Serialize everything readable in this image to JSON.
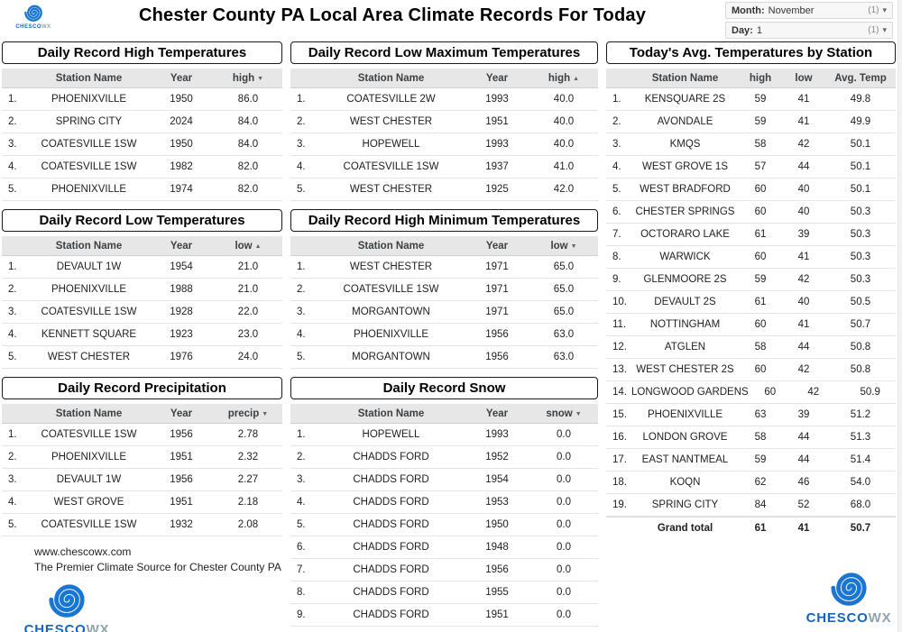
{
  "header": {
    "title": "Chester County PA Local Area Climate Records For Today",
    "filters": [
      {
        "label": "Month:",
        "value": "November",
        "count": "(1)"
      },
      {
        "label": "Day:",
        "value": "1",
        "count": "(1)"
      }
    ]
  },
  "branding": {
    "logo_primary": "CHESCO",
    "logo_secondary": "WX",
    "website": "www.chescowx.com",
    "tagline": "The Premier Climate Source for Chester County PA",
    "accent_color": "#1565c0"
  },
  "tables": {
    "record_high": {
      "title": "Daily Record High Temperatures",
      "columns": [
        {
          "label": "Station Name"
        },
        {
          "label": "Year"
        },
        {
          "label": "high",
          "sort": "desc"
        }
      ],
      "rows": [
        [
          "PHOENIXVILLE",
          "1950",
          "86.0"
        ],
        [
          "SPRING CITY",
          "2024",
          "84.0"
        ],
        [
          "COATESVILLE 1SW",
          "1950",
          "84.0"
        ],
        [
          "COATESVILLE 1SW",
          "1982",
          "82.0"
        ],
        [
          "PHOENIXVILLE",
          "1974",
          "82.0"
        ]
      ]
    },
    "record_low": {
      "title": "Daily Record Low Temperatures",
      "columns": [
        {
          "label": "Station Name"
        },
        {
          "label": "Year"
        },
        {
          "label": "low",
          "sort": "asc"
        }
      ],
      "rows": [
        [
          "DEVAULT 1W",
          "1954",
          "21.0"
        ],
        [
          "PHOENIXVILLE",
          "1988",
          "21.0"
        ],
        [
          "COATESVILLE 1SW",
          "1928",
          "22.0"
        ],
        [
          "KENNETT SQUARE",
          "1923",
          "23.0"
        ],
        [
          "WEST CHESTER",
          "1976",
          "24.0"
        ]
      ]
    },
    "precip": {
      "title": "Daily Record Precipitation",
      "columns": [
        {
          "label": "Station Name"
        },
        {
          "label": "Year"
        },
        {
          "label": "precip",
          "sort": "desc"
        }
      ],
      "rows": [
        [
          "COATESVILLE 1SW",
          "1956",
          "2.78"
        ],
        [
          "PHOENIXVILLE",
          "1951",
          "2.32"
        ],
        [
          "DEVAULT 1W",
          "1956",
          "2.27"
        ],
        [
          "WEST GROVE",
          "1951",
          "2.18"
        ],
        [
          "COATESVILLE 1SW",
          "1932",
          "2.08"
        ]
      ]
    },
    "low_max": {
      "title": "Daily Record Low Maximum Temperatures",
      "columns": [
        {
          "label": "Station Name"
        },
        {
          "label": "Year"
        },
        {
          "label": "high",
          "sort": "asc"
        }
      ],
      "rows": [
        [
          "COATESVILLE 2W",
          "1993",
          "40.0"
        ],
        [
          "WEST CHESTER",
          "1951",
          "40.0"
        ],
        [
          "HOPEWELL",
          "1993",
          "40.0"
        ],
        [
          "COATESVILLE 1SW",
          "1937",
          "41.0"
        ],
        [
          "WEST CHESTER",
          "1925",
          "42.0"
        ]
      ]
    },
    "high_min": {
      "title": "Daily Record High Minimum Temperatures",
      "columns": [
        {
          "label": "Station Name"
        },
        {
          "label": "Year"
        },
        {
          "label": "low",
          "sort": "desc"
        }
      ],
      "rows": [
        [
          "WEST CHESTER",
          "1971",
          "65.0"
        ],
        [
          "COATESVILLE 1SW",
          "1971",
          "65.0"
        ],
        [
          "MORGANTOWN",
          "1971",
          "65.0"
        ],
        [
          "PHOENIXVILLE",
          "1956",
          "63.0"
        ],
        [
          "MORGANTOWN",
          "1956",
          "63.0"
        ]
      ]
    },
    "snow": {
      "title": "Daily Record Snow",
      "columns": [
        {
          "label": "Station Name"
        },
        {
          "label": "Year"
        },
        {
          "label": "snow",
          "sort": "desc"
        }
      ],
      "rows": [
        [
          "HOPEWELL",
          "1993",
          "0.0"
        ],
        [
          "CHADDS FORD",
          "1952",
          "0.0"
        ],
        [
          "CHADDS FORD",
          "1954",
          "0.0"
        ],
        [
          "CHADDS FORD",
          "1953",
          "0.0"
        ],
        [
          "CHADDS FORD",
          "1950",
          "0.0"
        ],
        [
          "CHADDS FORD",
          "1948",
          "0.0"
        ],
        [
          "CHADDS FORD",
          "1956",
          "0.0"
        ],
        [
          "CHADDS FORD",
          "1955",
          "0.0"
        ],
        [
          "CHADDS FORD",
          "1951",
          "0.0"
        ]
      ]
    },
    "avg_temps": {
      "title": "Today's Avg. Temperatures by Station",
      "columns": [
        {
          "label": "Station Name"
        },
        {
          "label": "high"
        },
        {
          "label": "low"
        },
        {
          "label": "Avg. Temp"
        }
      ],
      "rows": [
        [
          "KENSQUARE 2S",
          "59",
          "41",
          "49.8"
        ],
        [
          "AVONDALE",
          "59",
          "41",
          "49.9"
        ],
        [
          "KMQS",
          "58",
          "42",
          "50.1"
        ],
        [
          "WEST GROVE 1S",
          "57",
          "44",
          "50.1"
        ],
        [
          "WEST BRADFORD",
          "60",
          "40",
          "50.1"
        ],
        [
          "CHESTER SPRINGS",
          "60",
          "40",
          "50.3"
        ],
        [
          "OCTORARO LAKE",
          "61",
          "39",
          "50.3"
        ],
        [
          "WARWICK",
          "60",
          "41",
          "50.3"
        ],
        [
          "GLENMOORE 2S",
          "59",
          "42",
          "50.3"
        ],
        [
          "DEVAULT 2S",
          "61",
          "40",
          "50.5"
        ],
        [
          "NOTTINGHAM",
          "60",
          "41",
          "50.7"
        ],
        [
          "ATGLEN",
          "58",
          "44",
          "50.8"
        ],
        [
          "WEST CHESTER 2S",
          "60",
          "42",
          "50.8"
        ],
        [
          "LONGWOOD GARDENS",
          "60",
          "42",
          "50.9"
        ],
        [
          "PHOENIXVILLE",
          "63",
          "39",
          "51.2"
        ],
        [
          "LONDON GROVE",
          "58",
          "44",
          "51.3"
        ],
        [
          "EAST NANTMEAL",
          "59",
          "44",
          "51.4"
        ],
        [
          "KOQN",
          "62",
          "46",
          "54.0"
        ],
        [
          "SPRING CITY",
          "84",
          "52",
          "68.0"
        ]
      ],
      "total": [
        "Grand total",
        "61",
        "41",
        "50.7"
      ]
    }
  }
}
